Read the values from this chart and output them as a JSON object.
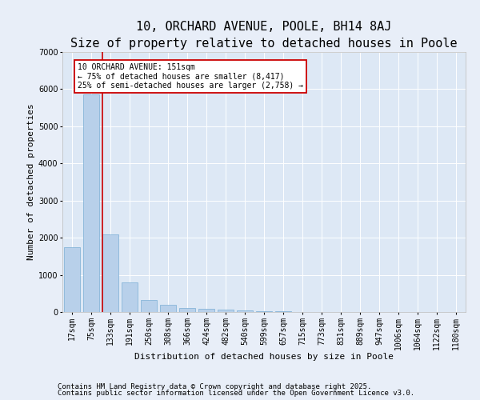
{
  "title1": "10, ORCHARD AVENUE, POOLE, BH14 8AJ",
  "title2": "Size of property relative to detached houses in Poole",
  "xlabel": "Distribution of detached houses by size in Poole",
  "ylabel": "Number of detached properties",
  "categories": [
    "17sqm",
    "75sqm",
    "133sqm",
    "191sqm",
    "250sqm",
    "308sqm",
    "366sqm",
    "424sqm",
    "482sqm",
    "540sqm",
    "599sqm",
    "657sqm",
    "715sqm",
    "773sqm",
    "831sqm",
    "889sqm",
    "947sqm",
    "1006sqm",
    "1064sqm",
    "1122sqm",
    "1180sqm"
  ],
  "values": [
    1750,
    5850,
    2100,
    800,
    330,
    190,
    110,
    90,
    70,
    40,
    30,
    15,
    10,
    5,
    5,
    4,
    3,
    3,
    2,
    2,
    2
  ],
  "bar_color": "#b8d0ea",
  "bar_edge_color": "#7aaed4",
  "vline_x_index": 2,
  "vline_color": "#cc0000",
  "ylim": [
    0,
    7000
  ],
  "yticks": [
    0,
    1000,
    2000,
    3000,
    4000,
    5000,
    6000,
    7000
  ],
  "annotation_text": "10 ORCHARD AVENUE: 151sqm\n← 75% of detached houses are smaller (8,417)\n25% of semi-detached houses are larger (2,758) →",
  "annotation_box_color": "#ffffff",
  "annotation_box_edge_color": "#cc0000",
  "footer1": "Contains HM Land Registry data © Crown copyright and database right 2025.",
  "footer2": "Contains public sector information licensed under the Open Government Licence v3.0.",
  "bg_color": "#e8eef8",
  "plot_bg_color": "#dde8f5",
  "title1_fontsize": 11,
  "title2_fontsize": 9,
  "tick_fontsize": 7,
  "ylabel_fontsize": 8,
  "xlabel_fontsize": 8,
  "footer_fontsize": 6.5,
  "annotation_fontsize": 7
}
